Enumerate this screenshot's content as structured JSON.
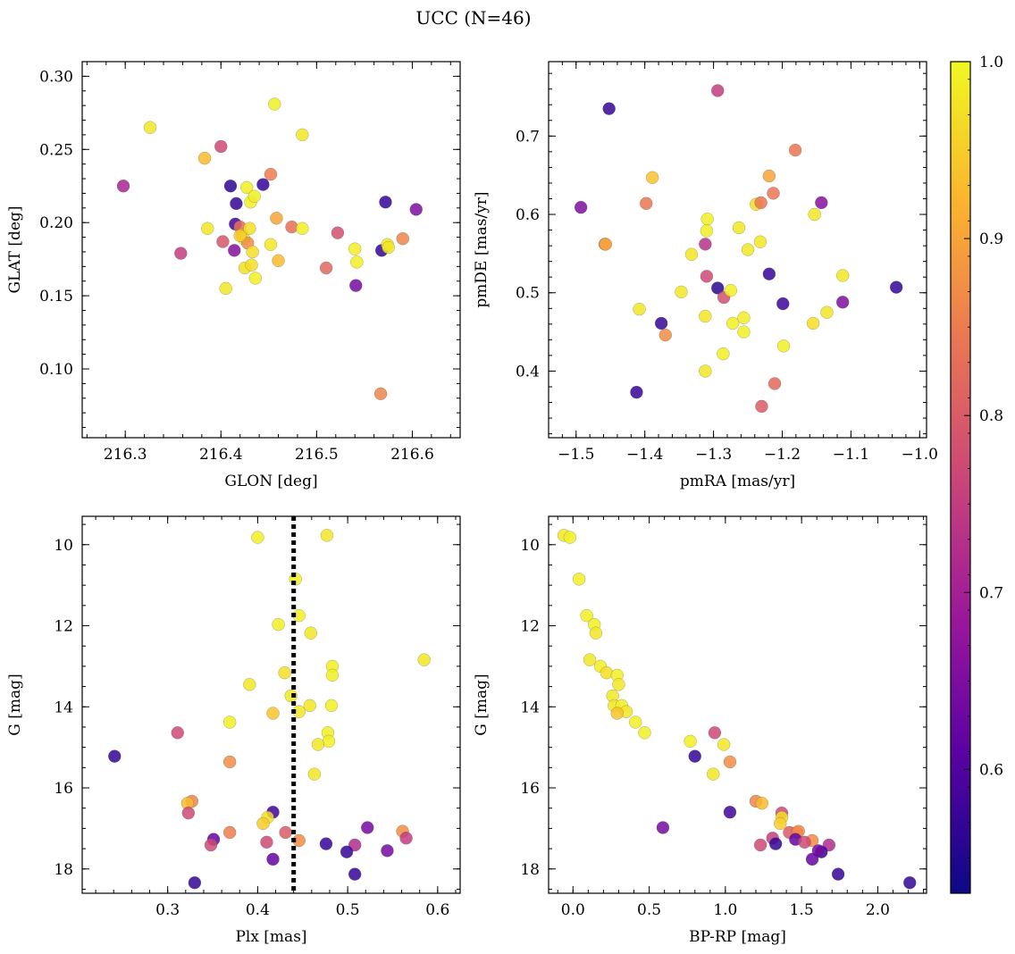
{
  "title": "UCC (N=46)",
  "colorbar": {
    "min": 0.53,
    "max": 1.0,
    "ticks": [
      "0.6",
      "0.7",
      "0.8",
      "0.9",
      "1.0"
    ],
    "tick_values": [
      0.6,
      0.7,
      0.8,
      0.9,
      1.0
    ],
    "stops": [
      "#0d0887",
      "#5b02a3",
      "#9a179b",
      "#cb4678",
      "#eb7852",
      "#fbb32f",
      "#eff821"
    ]
  },
  "chart_data": [
    {
      "type": "scatter",
      "name": "glon-glat",
      "xlabel": "GLON [deg]",
      "ylabel": "GLAT [deg]",
      "xlim": [
        216.255,
        216.65
      ],
      "ylim": [
        0.053,
        0.31
      ],
      "xticks": [
        216.3,
        216.4,
        216.5,
        216.6
      ],
      "xticklabels": [
        "216.3",
        "216.4",
        "216.5",
        "216.6"
      ],
      "yticks": [
        0.1,
        0.15,
        0.2,
        0.25,
        0.3
      ],
      "yticklabels": [
        "0.10",
        "0.15",
        "0.20",
        "0.25",
        "0.30"
      ],
      "xminor": 0.02,
      "yminor": 0.01,
      "points": [
        {
          "x": 216.326,
          "y": 0.265,
          "c": 0.98
        },
        {
          "x": 216.298,
          "y": 0.225,
          "c": 0.71
        },
        {
          "x": 216.358,
          "y": 0.179,
          "c": 0.75
        },
        {
          "x": 216.383,
          "y": 0.244,
          "c": 0.93
        },
        {
          "x": 216.4,
          "y": 0.252,
          "c": 0.77
        },
        {
          "x": 216.386,
          "y": 0.196,
          "c": 0.98
        },
        {
          "x": 216.402,
          "y": 0.187,
          "c": 0.79
        },
        {
          "x": 216.405,
          "y": 0.155,
          "c": 0.98
        },
        {
          "x": 216.41,
          "y": 0.225,
          "c": 0.56
        },
        {
          "x": 216.414,
          "y": 0.181,
          "c": 0.66
        },
        {
          "x": 216.415,
          "y": 0.199,
          "c": 0.58
        },
        {
          "x": 216.416,
          "y": 0.213,
          "c": 0.57
        },
        {
          "x": 216.42,
          "y": 0.197,
          "c": 0.83
        },
        {
          "x": 216.422,
          "y": 0.192,
          "c": 0.9
        },
        {
          "x": 216.424,
          "y": 0.189,
          "c": 0.97
        },
        {
          "x": 216.425,
          "y": 0.169,
          "c": 0.97
        },
        {
          "x": 216.427,
          "y": 0.224,
          "c": 0.99
        },
        {
          "x": 216.428,
          "y": 0.186,
          "c": 0.87
        },
        {
          "x": 216.43,
          "y": 0.196,
          "c": 0.97
        },
        {
          "x": 216.431,
          "y": 0.214,
          "c": 0.99
        },
        {
          "x": 216.433,
          "y": 0.18,
          "c": 0.97
        },
        {
          "x": 216.432,
          "y": 0.171,
          "c": 0.97
        },
        {
          "x": 216.435,
          "y": 0.218,
          "c": 0.99
        },
        {
          "x": 216.436,
          "y": 0.162,
          "c": 0.99
        },
        {
          "x": 216.444,
          "y": 0.226,
          "c": 0.57
        },
        {
          "x": 216.452,
          "y": 0.233,
          "c": 0.85
        },
        {
          "x": 216.452,
          "y": 0.185,
          "c": 0.98
        },
        {
          "x": 216.456,
          "y": 0.281,
          "c": 0.99
        },
        {
          "x": 216.458,
          "y": 0.203,
          "c": 0.9
        },
        {
          "x": 216.46,
          "y": 0.174,
          "c": 0.93
        },
        {
          "x": 216.474,
          "y": 0.197,
          "c": 0.83
        },
        {
          "x": 216.485,
          "y": 0.26,
          "c": 0.98
        },
        {
          "x": 216.485,
          "y": 0.196,
          "c": 0.99
        },
        {
          "x": 216.51,
          "y": 0.169,
          "c": 0.82
        },
        {
          "x": 216.522,
          "y": 0.193,
          "c": 0.78
        },
        {
          "x": 216.54,
          "y": 0.182,
          "c": 0.99
        },
        {
          "x": 216.542,
          "y": 0.173,
          "c": 0.99
        },
        {
          "x": 216.541,
          "y": 0.157,
          "c": 0.64
        },
        {
          "x": 216.567,
          "y": 0.083,
          "c": 0.86
        },
        {
          "x": 216.568,
          "y": 0.181,
          "c": 0.57
        },
        {
          "x": 216.572,
          "y": 0.214,
          "c": 0.57
        },
        {
          "x": 216.574,
          "y": 0.185,
          "c": 0.98
        },
        {
          "x": 216.575,
          "y": 0.183,
          "c": 0.98
        },
        {
          "x": 216.59,
          "y": 0.189,
          "c": 0.86
        },
        {
          "x": 216.604,
          "y": 0.209,
          "c": 0.65
        },
        {
          "x": 216.42,
          "y": 0.191,
          "c": 0.95
        }
      ]
    },
    {
      "type": "scatter",
      "name": "pmra-pmde",
      "xlabel": "pmRA [mas/yr]",
      "ylabel": "pmDE [mas/yr]",
      "xlim": [
        -1.54,
        -0.99
      ],
      "ylim": [
        0.315,
        0.795
      ],
      "xticks": [
        -1.5,
        -1.4,
        -1.3,
        -1.2,
        -1.1,
        -1.0
      ],
      "xticklabels": [
        "−1.5",
        "−1.4",
        "−1.3",
        "−1.2",
        "−1.1",
        "−1.0"
      ],
      "yticks": [
        0.4,
        0.5,
        0.6,
        0.7
      ],
      "yticklabels": [
        "0.4",
        "0.5",
        "0.6",
        "0.7"
      ],
      "xminor": 0.02,
      "yminor": 0.02,
      "points": [
        {
          "x": -1.452,
          "y": 0.735,
          "c": 0.57
        },
        {
          "x": -1.294,
          "y": 0.758,
          "c": 0.75
        },
        {
          "x": -1.493,
          "y": 0.609,
          "c": 0.65
        },
        {
          "x": -1.458,
          "y": 0.562,
          "c": 0.86
        },
        {
          "x": -1.457,
          "y": 0.562,
          "c": 0.9
        },
        {
          "x": -1.389,
          "y": 0.647,
          "c": 0.94
        },
        {
          "x": -1.398,
          "y": 0.614,
          "c": 0.84
        },
        {
          "x": -1.408,
          "y": 0.479,
          "c": 0.98
        },
        {
          "x": -1.376,
          "y": 0.461,
          "c": 0.57
        },
        {
          "x": -1.37,
          "y": 0.446,
          "c": 0.87
        },
        {
          "x": -1.412,
          "y": 0.373,
          "c": 0.57
        },
        {
          "x": -1.347,
          "y": 0.501,
          "c": 0.98
        },
        {
          "x": -1.332,
          "y": 0.549,
          "c": 0.98
        },
        {
          "x": -1.309,
          "y": 0.594,
          "c": 0.99
        },
        {
          "x": -1.31,
          "y": 0.579,
          "c": 0.99
        },
        {
          "x": -1.312,
          "y": 0.562,
          "c": 0.73
        },
        {
          "x": -1.31,
          "y": 0.521,
          "c": 0.77
        },
        {
          "x": -1.312,
          "y": 0.47,
          "c": 0.98
        },
        {
          "x": -1.312,
          "y": 0.4,
          "c": 0.98
        },
        {
          "x": -1.294,
          "y": 0.506,
          "c": 0.56
        },
        {
          "x": -1.285,
          "y": 0.494,
          "c": 0.78
        },
        {
          "x": -1.275,
          "y": 0.503,
          "c": 0.99
        },
        {
          "x": -1.272,
          "y": 0.461,
          "c": 0.99
        },
        {
          "x": -1.286,
          "y": 0.422,
          "c": 0.99
        },
        {
          "x": -1.263,
          "y": 0.583,
          "c": 0.98
        },
        {
          "x": -1.256,
          "y": 0.468,
          "c": 0.99
        },
        {
          "x": -1.256,
          "y": 0.45,
          "c": 0.99
        },
        {
          "x": -1.25,
          "y": 0.555,
          "c": 0.98
        },
        {
          "x": -1.238,
          "y": 0.613,
          "c": 0.97
        },
        {
          "x": -1.231,
          "y": 0.615,
          "c": 0.84
        },
        {
          "x": -1.232,
          "y": 0.565,
          "c": 0.98
        },
        {
          "x": -1.23,
          "y": 0.355,
          "c": 0.8
        },
        {
          "x": -1.219,
          "y": 0.649,
          "c": 0.9
        },
        {
          "x": -1.213,
          "y": 0.627,
          "c": 0.84
        },
        {
          "x": -1.219,
          "y": 0.524,
          "c": 0.57
        },
        {
          "x": -1.211,
          "y": 0.384,
          "c": 0.82
        },
        {
          "x": -1.199,
          "y": 0.486,
          "c": 0.58
        },
        {
          "x": -1.198,
          "y": 0.432,
          "c": 0.99
        },
        {
          "x": -1.181,
          "y": 0.682,
          "c": 0.84
        },
        {
          "x": -1.153,
          "y": 0.6,
          "c": 0.98
        },
        {
          "x": -1.155,
          "y": 0.461,
          "c": 0.97
        },
        {
          "x": -1.143,
          "y": 0.615,
          "c": 0.66
        },
        {
          "x": -1.135,
          "y": 0.475,
          "c": 0.98
        },
        {
          "x": -1.112,
          "y": 0.522,
          "c": 0.98
        },
        {
          "x": -1.112,
          "y": 0.488,
          "c": 0.65
        },
        {
          "x": -1.034,
          "y": 0.507,
          "c": 0.57
        }
      ]
    },
    {
      "type": "scatter",
      "name": "plx-g",
      "xlabel": "Plx [mas]",
      "ylabel": "G [mag]",
      "xlim": [
        0.205,
        0.625
      ],
      "ylim": [
        18.6,
        9.3
      ],
      "xticks": [
        0.3,
        0.4,
        0.5,
        0.6
      ],
      "xticklabels": [
        "0.3",
        "0.4",
        "0.5",
        "0.6"
      ],
      "yticks": [
        10,
        12,
        14,
        16,
        18
      ],
      "yticklabels": [
        "10",
        "12",
        "14",
        "16",
        "18"
      ],
      "xminor": 0.02,
      "yminor": 0.5,
      "vline": 0.44,
      "points": [
        {
          "x": 0.4,
          "y": 9.82,
          "c": 0.99
        },
        {
          "x": 0.477,
          "y": 9.77,
          "c": 0.98
        },
        {
          "x": 0.442,
          "y": 10.85,
          "c": 0.99
        },
        {
          "x": 0.446,
          "y": 11.75,
          "c": 0.99
        },
        {
          "x": 0.423,
          "y": 11.97,
          "c": 0.99
        },
        {
          "x": 0.459,
          "y": 12.18,
          "c": 0.98
        },
        {
          "x": 0.585,
          "y": 12.84,
          "c": 0.98
        },
        {
          "x": 0.483,
          "y": 13.0,
          "c": 0.99
        },
        {
          "x": 0.43,
          "y": 13.16,
          "c": 0.97
        },
        {
          "x": 0.483,
          "y": 13.22,
          "c": 0.99
        },
        {
          "x": 0.391,
          "y": 13.45,
          "c": 0.98
        },
        {
          "x": 0.437,
          "y": 13.73,
          "c": 0.98
        },
        {
          "x": 0.458,
          "y": 13.97,
          "c": 0.98
        },
        {
          "x": 0.482,
          "y": 13.97,
          "c": 0.99
        },
        {
          "x": 0.446,
          "y": 14.12,
          "c": 0.98
        },
        {
          "x": 0.417,
          "y": 14.16,
          "c": 0.94
        },
        {
          "x": 0.369,
          "y": 14.38,
          "c": 0.99
        },
        {
          "x": 0.311,
          "y": 14.64,
          "c": 0.77
        },
        {
          "x": 0.478,
          "y": 14.64,
          "c": 0.99
        },
        {
          "x": 0.479,
          "y": 14.85,
          "c": 0.99
        },
        {
          "x": 0.467,
          "y": 14.93,
          "c": 0.98
        },
        {
          "x": 0.241,
          "y": 15.22,
          "c": 0.57
        },
        {
          "x": 0.369,
          "y": 15.36,
          "c": 0.87
        },
        {
          "x": 0.463,
          "y": 15.66,
          "c": 0.98
        },
        {
          "x": 0.327,
          "y": 16.33,
          "c": 0.86
        },
        {
          "x": 0.322,
          "y": 16.38,
          "c": 0.93
        },
        {
          "x": 0.323,
          "y": 16.62,
          "c": 0.77
        },
        {
          "x": 0.417,
          "y": 16.6,
          "c": 0.58
        },
        {
          "x": 0.411,
          "y": 16.73,
          "c": 0.97
        },
        {
          "x": 0.406,
          "y": 16.88,
          "c": 0.95
        },
        {
          "x": 0.522,
          "y": 16.98,
          "c": 0.64
        },
        {
          "x": 0.431,
          "y": 17.1,
          "c": 0.8
        },
        {
          "x": 0.369,
          "y": 17.1,
          "c": 0.85
        },
        {
          "x": 0.561,
          "y": 17.07,
          "c": 0.87
        },
        {
          "x": 0.565,
          "y": 17.24,
          "c": 0.75
        },
        {
          "x": 0.446,
          "y": 17.3,
          "c": 0.87
        },
        {
          "x": 0.351,
          "y": 17.27,
          "c": 0.62
        },
        {
          "x": 0.348,
          "y": 17.41,
          "c": 0.77
        },
        {
          "x": 0.41,
          "y": 17.34,
          "c": 0.77
        },
        {
          "x": 0.476,
          "y": 17.38,
          "c": 0.57
        },
        {
          "x": 0.508,
          "y": 17.41,
          "c": 0.72
        },
        {
          "x": 0.499,
          "y": 17.58,
          "c": 0.57
        },
        {
          "x": 0.544,
          "y": 17.55,
          "c": 0.64
        },
        {
          "x": 0.417,
          "y": 17.76,
          "c": 0.62
        },
        {
          "x": 0.508,
          "y": 18.13,
          "c": 0.57
        },
        {
          "x": 0.33,
          "y": 18.34,
          "c": 0.57
        }
      ]
    },
    {
      "type": "scatter",
      "name": "bprp-g",
      "xlabel": "BP-RP [mag]",
      "ylabel": "G [mag]",
      "xlim": [
        -0.16,
        2.32
      ],
      "ylim": [
        18.6,
        9.3
      ],
      "xticks": [
        0.0,
        0.5,
        1.0,
        1.5,
        2.0
      ],
      "xticklabels": [
        "0.0",
        "0.5",
        "1.0",
        "1.5",
        "2.0"
      ],
      "yticks": [
        10,
        12,
        14,
        16,
        18
      ],
      "yticklabels": [
        "10",
        "12",
        "14",
        "16",
        "18"
      ],
      "xminor": 0.1,
      "yminor": 0.5,
      "points": [
        {
          "x": -0.06,
          "y": 9.77,
          "c": 0.98
        },
        {
          "x": -0.02,
          "y": 9.82,
          "c": 0.99
        },
        {
          "x": 0.04,
          "y": 10.85,
          "c": 0.99
        },
        {
          "x": 0.09,
          "y": 11.75,
          "c": 0.99
        },
        {
          "x": 0.14,
          "y": 11.97,
          "c": 0.99
        },
        {
          "x": 0.15,
          "y": 12.18,
          "c": 0.98
        },
        {
          "x": 0.11,
          "y": 12.84,
          "c": 0.98
        },
        {
          "x": 0.18,
          "y": 13.0,
          "c": 0.99
        },
        {
          "x": 0.22,
          "y": 13.16,
          "c": 0.97
        },
        {
          "x": 0.29,
          "y": 13.22,
          "c": 0.99
        },
        {
          "x": 0.3,
          "y": 13.45,
          "c": 0.98
        },
        {
          "x": 0.26,
          "y": 13.73,
          "c": 0.98
        },
        {
          "x": 0.27,
          "y": 13.97,
          "c": 0.98
        },
        {
          "x": 0.32,
          "y": 13.97,
          "c": 0.99
        },
        {
          "x": 0.35,
          "y": 14.12,
          "c": 0.98
        },
        {
          "x": 0.29,
          "y": 14.16,
          "c": 0.94
        },
        {
          "x": 0.41,
          "y": 14.38,
          "c": 0.99
        },
        {
          "x": 0.47,
          "y": 14.64,
          "c": 0.99
        },
        {
          "x": 0.93,
          "y": 14.64,
          "c": 0.77
        },
        {
          "x": 0.77,
          "y": 14.85,
          "c": 0.99
        },
        {
          "x": 0.99,
          "y": 14.93,
          "c": 0.98
        },
        {
          "x": 0.8,
          "y": 15.22,
          "c": 0.57
        },
        {
          "x": 1.03,
          "y": 15.36,
          "c": 0.87
        },
        {
          "x": 0.92,
          "y": 15.66,
          "c": 0.98
        },
        {
          "x": 1.2,
          "y": 16.33,
          "c": 0.86
        },
        {
          "x": 1.24,
          "y": 16.38,
          "c": 0.93
        },
        {
          "x": 1.37,
          "y": 16.62,
          "c": 0.77
        },
        {
          "x": 1.03,
          "y": 16.6,
          "c": 0.58
        },
        {
          "x": 1.37,
          "y": 16.73,
          "c": 0.97
        },
        {
          "x": 1.36,
          "y": 16.88,
          "c": 0.95
        },
        {
          "x": 0.59,
          "y": 16.98,
          "c": 0.64
        },
        {
          "x": 1.42,
          "y": 17.1,
          "c": 0.8
        },
        {
          "x": 1.47,
          "y": 17.1,
          "c": 0.85
        },
        {
          "x": 1.48,
          "y": 17.07,
          "c": 0.87
        },
        {
          "x": 1.31,
          "y": 17.24,
          "c": 0.75
        },
        {
          "x": 1.57,
          "y": 17.3,
          "c": 0.87
        },
        {
          "x": 1.46,
          "y": 17.27,
          "c": 0.62
        },
        {
          "x": 1.23,
          "y": 17.41,
          "c": 0.77
        },
        {
          "x": 1.52,
          "y": 17.34,
          "c": 0.77
        },
        {
          "x": 1.33,
          "y": 17.38,
          "c": 0.57
        },
        {
          "x": 1.68,
          "y": 17.41,
          "c": 0.72
        },
        {
          "x": 1.63,
          "y": 17.58,
          "c": 0.57
        },
        {
          "x": 1.61,
          "y": 17.55,
          "c": 0.64
        },
        {
          "x": 1.57,
          "y": 17.76,
          "c": 0.62
        },
        {
          "x": 1.74,
          "y": 18.13,
          "c": 0.57
        },
        {
          "x": 2.21,
          "y": 18.34,
          "c": 0.57
        }
      ]
    }
  ]
}
